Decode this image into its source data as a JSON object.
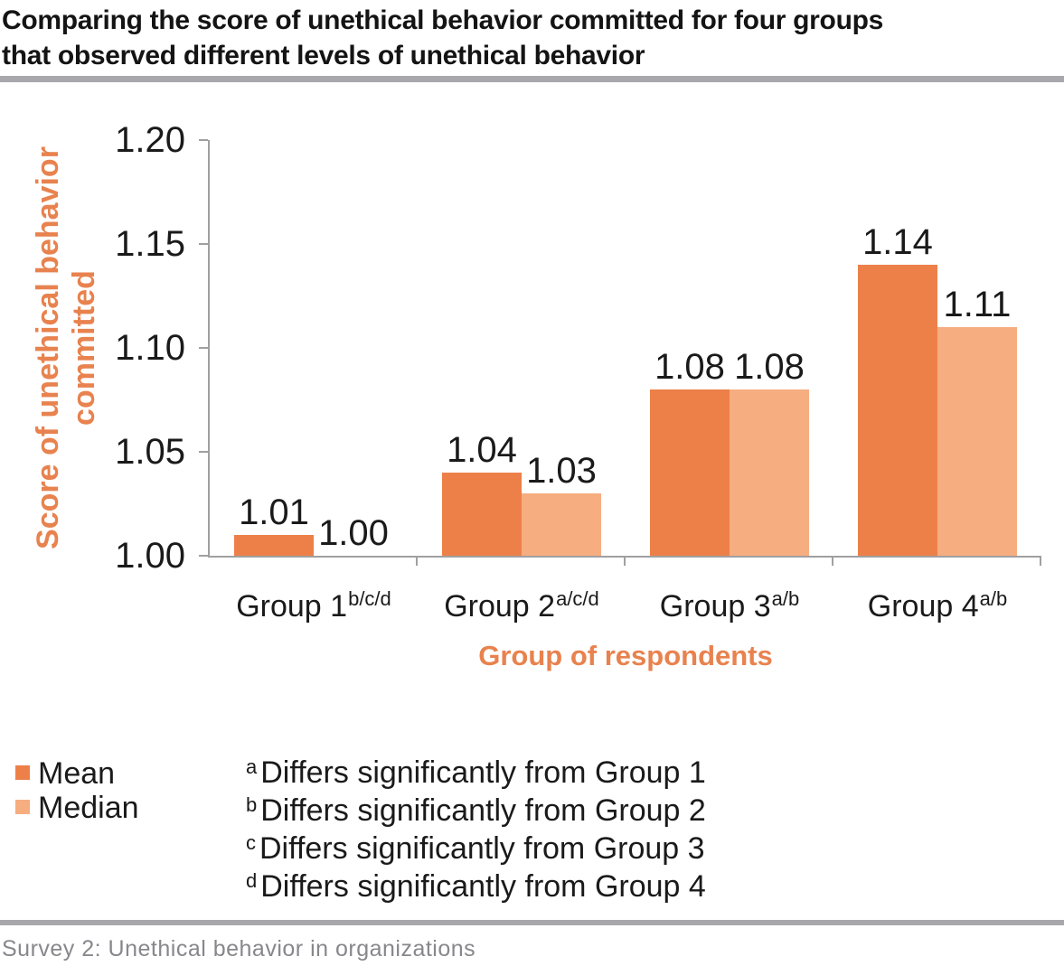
{
  "title": {
    "line1": "Comparing the score of unethical behavior committed for four groups",
    "line2": "that observed different levels of unethical behavior"
  },
  "chart_data": {
    "type": "bar",
    "categories": [
      "Group 1",
      "Group 2",
      "Group 3",
      "Group 4"
    ],
    "category_superscripts": [
      "b/c/d",
      "a/c/d",
      "a/b",
      "a/b"
    ],
    "series": [
      {
        "name": "Mean",
        "color": "#ED8049",
        "values": [
          1.01,
          1.04,
          1.08,
          1.14
        ]
      },
      {
        "name": "Median",
        "color": "#F6AD80",
        "values": [
          1.0,
          1.03,
          1.08,
          1.11
        ]
      }
    ],
    "value_labels": [
      [
        "1.01",
        "1.04",
        "1.08",
        "1.14"
      ],
      [
        "1.00",
        "1.03",
        "1.08",
        "1.11"
      ]
    ],
    "ylabel": "Score of unethical behavior committed",
    "xlabel": "Group of respondents",
    "ylim": [
      1.0,
      1.2
    ],
    "yticks": [
      "1.20",
      "1.15",
      "1.10",
      "1.05",
      "1.00"
    ],
    "grid": false,
    "legend_position": "bottom-left"
  },
  "footnotes": [
    {
      "sup": "a",
      "text": "Differs significantly from Group 1"
    },
    {
      "sup": "b",
      "text": "Differs significantly from Group 2"
    },
    {
      "sup": "c",
      "text": "Differs significantly from Group 3"
    },
    {
      "sup": "d",
      "text": "Differs significantly from Group 4"
    }
  ],
  "footer": {
    "source": "Survey 2: Unethical behavior in organizations"
  },
  "colors": {
    "mean_bar": "#ED8049",
    "median_bar": "#F6AD80",
    "accent_orange_text": "#E8824E",
    "axis_gray": "#A0A0A0",
    "divider_gray": "#A8A8AC",
    "footer_gray": "#87878C",
    "text_black": "#1A1A1A"
  }
}
